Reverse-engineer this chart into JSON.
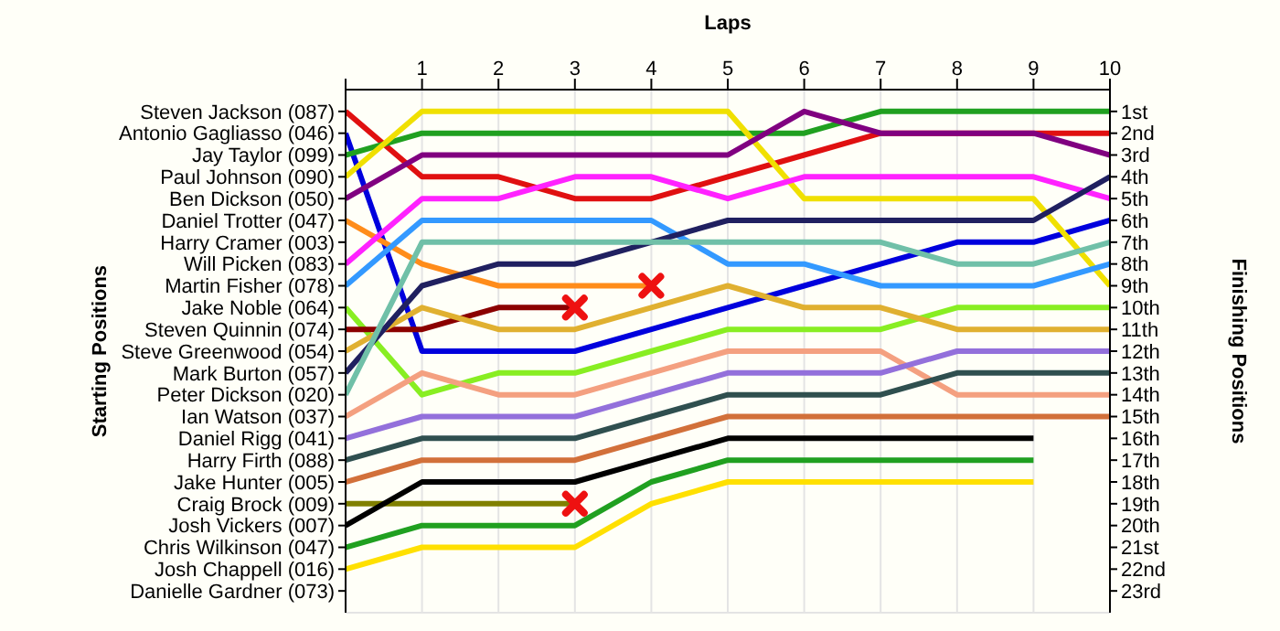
{
  "chart_data": {
    "type": "line",
    "xlabel": "Laps",
    "annotations": [
      "Starting Positions"
    ],
    "y2label": "Finishing Positions",
    "x": [
      0,
      1,
      2,
      3,
      4,
      5,
      6,
      7,
      8,
      9,
      10
    ],
    "xlim": [
      0,
      10
    ],
    "xticks": [
      {
        "value": 0,
        "label": null
      },
      1,
      2,
      3,
      4,
      5,
      6,
      7,
      8,
      9,
      10
    ],
    "y_categories": [
      "Steven Jackson (087)",
      "Antonio Gagliasso (046)",
      "Jay Taylor (099)",
      "Paul Johnson (090)",
      "Ben Dickson (050)",
      "Daniel Trotter (047)",
      "Harry Cramer (003)",
      "Will Picken (083)",
      "Martin Fisher (078)",
      "Jake Noble (064)",
      "Steven Quinnin (074)",
      "Steve Greenwood (054)",
      "Mark Burton (057)",
      "Peter Dickson (020)",
      "Ian Watson (037)",
      "Daniel Rigg (041)",
      "Harry Firth (088)",
      "Jake Hunter (005)",
      "Craig Brock (009)",
      "Josh Vickers (007)",
      "Chris Wilkinson (047)",
      "Josh Chappell (016)",
      "Danielle Gardner (073)"
    ],
    "y2lim": [
      24,
      0
    ],
    "y2ticks": [
      {
        "value": 1,
        "label": "1st"
      },
      {
        "value": 2,
        "label": "2nd"
      },
      {
        "value": 3,
        "label": "3rd"
      },
      {
        "value": 4,
        "label": "4th"
      },
      {
        "value": 5,
        "label": "5th"
      },
      {
        "value": 6,
        "label": "6th"
      },
      {
        "value": 7,
        "label": "7th"
      },
      {
        "value": 8,
        "label": "8th"
      },
      {
        "value": 9,
        "label": "9th"
      },
      {
        "value": 10,
        "label": "10th"
      },
      {
        "value": 11,
        "label": "11th"
      },
      {
        "value": 12,
        "label": "12th"
      },
      {
        "value": 13,
        "label": "13th"
      },
      {
        "value": 14,
        "label": "14th"
      },
      {
        "value": 15,
        "label": "15th"
      },
      {
        "value": 16,
        "label": "16th"
      },
      {
        "value": 17,
        "label": "17th"
      },
      {
        "value": 18,
        "label": "18th"
      },
      {
        "value": 19,
        "label": "19th"
      },
      {
        "value": 20,
        "label": "20th"
      },
      {
        "value": 21,
        "label": "21st"
      },
      {
        "value": 22,
        "label": "22nd"
      },
      {
        "value": 23,
        "label": "23rd"
      }
    ],
    "grid": true,
    "line_style": "solid",
    "marker": "none",
    "series": [
      {
        "axis": "y2",
        "color": "#e01010",
        "values": [
          1,
          4,
          4,
          5,
          5,
          4,
          3,
          2,
          2,
          2,
          2
        ]
      },
      {
        "axis": "y2",
        "color": "#0000dd",
        "values": [
          2,
          12,
          12,
          12,
          11,
          10,
          9,
          8,
          7,
          7,
          6
        ]
      },
      {
        "axis": "y2",
        "color": "#20a020",
        "values": [
          3,
          2,
          2,
          2,
          2,
          2,
          2,
          1,
          1,
          1,
          1
        ]
      },
      {
        "axis": "y2",
        "color": "#f0e000",
        "values": [
          4,
          1,
          1,
          1,
          1,
          1,
          5,
          5,
          5,
          5,
          9
        ]
      },
      {
        "axis": "y2",
        "color": "#800080",
        "values": [
          5,
          3,
          3,
          3,
          3,
          3,
          1,
          2,
          2,
          2,
          3
        ]
      },
      {
        "axis": "y2",
        "color": "#ff8c1a",
        "values": [
          6,
          8,
          9,
          9,
          9,
          null,
          null,
          null,
          null,
          null,
          null
        ]
      },
      {
        "axis": "y2",
        "color": "#ff22ff",
        "values": [
          8,
          5,
          5,
          4,
          4,
          5,
          4,
          4,
          4,
          4,
          5
        ]
      },
      {
        "axis": "y2",
        "color": "#3399ff",
        "values": [
          9,
          6,
          6,
          6,
          6,
          8,
          8,
          9,
          9,
          9,
          8
        ]
      },
      {
        "axis": "y2",
        "color": "#88ee22",
        "values": [
          10,
          14,
          13,
          13,
          12,
          11,
          11,
          11,
          10,
          10,
          10
        ]
      },
      {
        "axis": "y2",
        "color": "#8b0000",
        "values": [
          11,
          11,
          10,
          10,
          null,
          null,
          null,
          null,
          null,
          null,
          null
        ]
      },
      {
        "axis": "y2",
        "color": "#e0b030",
        "values": [
          12,
          10,
          11,
          11,
          10,
          9,
          10,
          10,
          11,
          11,
          11
        ]
      },
      {
        "axis": "y2",
        "color": "#202060",
        "values": [
          13,
          9,
          8,
          8,
          7,
          6,
          6,
          6,
          6,
          6,
          4
        ]
      },
      {
        "axis": "y2",
        "color": "#70c0a8",
        "values": [
          14,
          7,
          7,
          7,
          7,
          7,
          7,
          7,
          8,
          8,
          7
        ]
      },
      {
        "axis": "y2",
        "color": "#f4a080",
        "values": [
          15,
          13,
          14,
          14,
          13,
          12,
          12,
          12,
          14,
          14,
          14
        ]
      },
      {
        "axis": "y2",
        "color": "#9370db",
        "values": [
          16,
          15,
          15,
          15,
          14,
          13,
          13,
          13,
          12,
          12,
          12
        ]
      },
      {
        "axis": "y2",
        "color": "#2f4f4f",
        "values": [
          17,
          16,
          16,
          16,
          15,
          14,
          14,
          14,
          13,
          13,
          13
        ]
      },
      {
        "axis": "y2",
        "color": "#d2703a",
        "values": [
          18,
          17,
          17,
          17,
          16,
          15,
          15,
          15,
          15,
          15,
          15
        ]
      },
      {
        "axis": "y2",
        "color": "#808000",
        "values": [
          19,
          19,
          19,
          19,
          null,
          null,
          null,
          null,
          null,
          null,
          null
        ]
      },
      {
        "axis": "y2",
        "color": "#000000",
        "values": [
          20,
          18,
          18,
          18,
          17,
          16,
          16,
          16,
          16,
          16,
          null
        ]
      },
      {
        "axis": "y2",
        "color": "#20a020",
        "values": [
          21,
          20,
          20,
          20,
          18,
          17,
          17,
          17,
          17,
          17,
          null
        ]
      },
      {
        "axis": "y2",
        "color": "#ffe000",
        "values": [
          22,
          21,
          21,
          21,
          19,
          18,
          18,
          18,
          18,
          18,
          null
        ]
      },
      {
        "axis": "y2",
        "type": "scatter",
        "marker": "cross",
        "color": "#ee1111",
        "values": [
          null,
          null,
          null,
          10,
          9,
          null,
          null,
          null,
          null,
          null,
          null
        ]
      },
      {
        "axis": "y2",
        "type": "scatter",
        "marker": "cross",
        "color": "#ee1111",
        "values": [
          null,
          null,
          null,
          19,
          null,
          null,
          null,
          null,
          null,
          null,
          null
        ]
      }
    ]
  }
}
